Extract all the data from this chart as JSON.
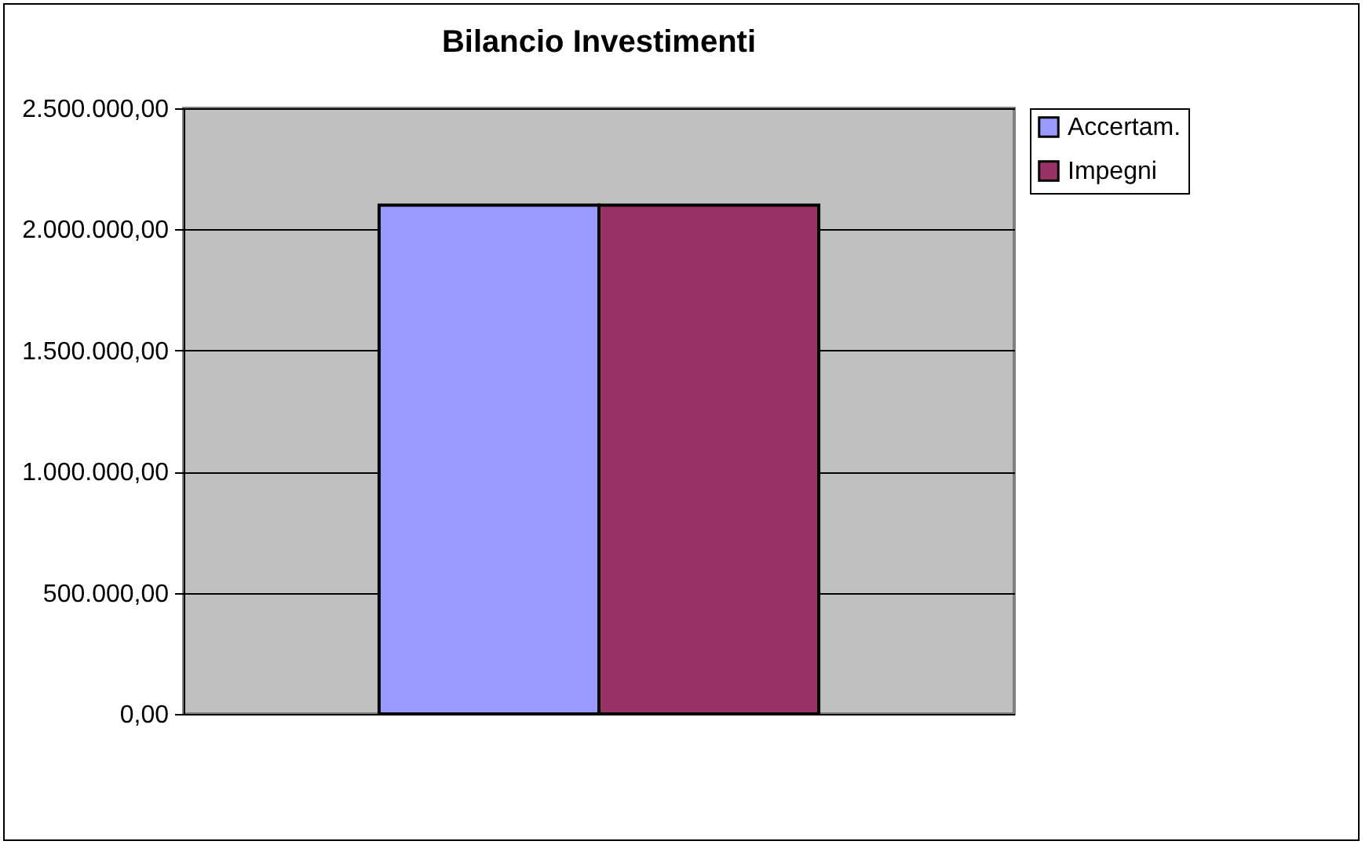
{
  "chart_data": {
    "type": "bar",
    "title": "Bilancio Investimenti",
    "categories": [
      null
    ],
    "series": [
      {
        "name": "Accertam.",
        "color": "#9999ff",
        "values": [
          2100000
        ]
      },
      {
        "name": "Impegni",
        "color": "#993366",
        "values": [
          2100000
        ]
      }
    ],
    "ylim": [
      0,
      2500000
    ],
    "yticks": [
      {
        "value": 0,
        "label": "0,00"
      },
      {
        "value": 500000,
        "label": "500.000,00"
      },
      {
        "value": 1000000,
        "label": "1.000.000,00"
      },
      {
        "value": 1500000,
        "label": "1.500.000,00"
      },
      {
        "value": 2000000,
        "label": "2.000.000,00"
      },
      {
        "value": 2500000,
        "label": "2.500.000,00"
      }
    ],
    "grid": "y",
    "legend": "right",
    "tick_labels": "y"
  }
}
